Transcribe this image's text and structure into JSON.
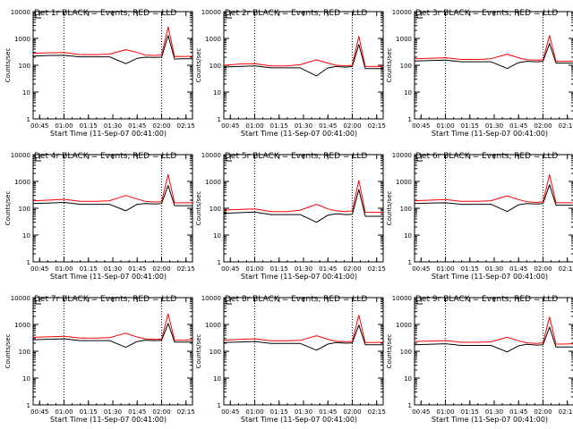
{
  "colors": {
    "events": "#000000",
    "lld": "#ff0000",
    "axis": "#000000"
  },
  "chart_data": [
    {
      "type": "line",
      "title": "Det 1r BLACK = Events, RED = LLD",
      "xlabel": "Start Time (11-Sep-07 00:41:00)",
      "ylabel": "Counts/sec",
      "x_ticks": [
        "00:45",
        "01:00",
        "01:15",
        "01:30",
        "01:45",
        "02:00",
        "02:15"
      ],
      "y_ticks": [
        "1",
        "10",
        "100",
        "1000",
        "10000"
      ],
      "y_scale": "log",
      "ylim": [
        1,
        10000
      ],
      "xlim": [
        "00:41",
        "02:19"
      ],
      "grid": false,
      "vertical_markers": [
        "01:00",
        "02:00"
      ],
      "x": [
        "00:41",
        "00:50",
        "01:00",
        "01:10",
        "01:20",
        "01:28",
        "01:38",
        "01:45",
        "01:50",
        "01:56",
        "02:00",
        "02:04",
        "02:08",
        "02:12",
        "02:19"
      ],
      "series": [
        {
          "name": "Events",
          "color": "#000000",
          "values": [
            220,
            230,
            235,
            205,
            205,
            205,
            115,
            180,
            200,
            195,
            200,
            1300,
            170,
            175,
            175
          ]
        },
        {
          "name": "LLD",
          "color": "#ff0000",
          "values": [
            280,
            290,
            300,
            250,
            250,
            260,
            380,
            300,
            240,
            230,
            240,
            2700,
            210,
            210,
            215
          ]
        }
      ]
    },
    {
      "type": "line",
      "title": "Det 2r BLACK = Events, RED = LLD",
      "xlabel": "Start Time (11-Sep-07 00:41:00)",
      "ylabel": "Counts/sec",
      "x_ticks": [
        "00:45",
        "01:00",
        "01:15",
        "01:30",
        "01:45",
        "02:00",
        "02:15"
      ],
      "y_ticks": [
        "1",
        "10",
        "100",
        "1000",
        "10000"
      ],
      "y_scale": "log",
      "ylim": [
        1,
        10000
      ],
      "xlim": [
        "00:41",
        "02:19"
      ],
      "grid": false,
      "vertical_markers": [
        "01:00",
        "02:00"
      ],
      "x": [
        "00:41",
        "00:50",
        "01:00",
        "01:10",
        "01:20",
        "01:28",
        "01:38",
        "01:45",
        "01:50",
        "01:56",
        "02:00",
        "02:04",
        "02:08",
        "02:12",
        "02:19"
      ],
      "series": [
        {
          "name": "Events",
          "color": "#000000",
          "values": [
            85,
            90,
            95,
            80,
            80,
            80,
            40,
            80,
            90,
            85,
            90,
            600,
            75,
            75,
            75
          ]
        },
        {
          "name": "LLD",
          "color": "#ff0000",
          "values": [
            100,
            110,
            115,
            95,
            95,
            105,
            160,
            120,
            100,
            95,
            100,
            1200,
            90,
            90,
            90
          ]
        }
      ]
    },
    {
      "type": "line",
      "title": "Det 3r BLACK = Events, RED = LLD",
      "xlabel": "Start Time (11-Sep-07 00:41:00)",
      "ylabel": "Counts/sec",
      "x_ticks": [
        "00:45",
        "01:00",
        "01:15",
        "01:30",
        "01:45",
        "02:00",
        "02:15"
      ],
      "y_ticks": [
        "1",
        "10",
        "100",
        "1000",
        "10000"
      ],
      "y_scale": "log",
      "ylim": [
        1,
        10000
      ],
      "xlim": [
        "00:41",
        "02:19"
      ],
      "grid": false,
      "vertical_markers": [
        "01:00",
        "02:00"
      ],
      "x": [
        "00:41",
        "00:50",
        "01:00",
        "01:10",
        "01:20",
        "01:28",
        "01:38",
        "01:45",
        "01:50",
        "01:56",
        "02:00",
        "02:04",
        "02:08",
        "02:12",
        "02:19"
      ],
      "series": [
        {
          "name": "Events",
          "color": "#000000",
          "values": [
            145,
            150,
            155,
            135,
            135,
            135,
            75,
            125,
            140,
            135,
            140,
            650,
            120,
            120,
            120
          ]
        },
        {
          "name": "LLD",
          "color": "#ff0000",
          "values": [
            175,
            180,
            190,
            165,
            165,
            175,
            260,
            190,
            160,
            155,
            160,
            1300,
            140,
            140,
            145
          ]
        }
      ]
    },
    {
      "type": "line",
      "title": "Det 4r BLACK = Events, RED = LLD",
      "xlabel": "Start Time (11-Sep-07 00:41:00)",
      "ylabel": "Counts/sec",
      "x_ticks": [
        "00:45",
        "01:00",
        "01:15",
        "01:30",
        "01:45",
        "02:00",
        "02:15"
      ],
      "y_ticks": [
        "1",
        "10",
        "100",
        "1000",
        "10000"
      ],
      "y_scale": "log",
      "ylim": [
        1,
        10000
      ],
      "xlim": [
        "00:41",
        "02:19"
      ],
      "grid": false,
      "vertical_markers": [
        "01:00",
        "02:00"
      ],
      "x": [
        "00:41",
        "00:50",
        "01:00",
        "01:10",
        "01:20",
        "01:28",
        "01:38",
        "01:45",
        "01:50",
        "01:56",
        "02:00",
        "02:04",
        "02:08",
        "02:12",
        "02:19"
      ],
      "series": [
        {
          "name": "Events",
          "color": "#000000",
          "values": [
            150,
            155,
            165,
            140,
            140,
            140,
            80,
            140,
            150,
            145,
            150,
            700,
            125,
            125,
            125
          ]
        },
        {
          "name": "LLD",
          "color": "#ff0000",
          "values": [
            190,
            200,
            215,
            180,
            180,
            190,
            300,
            220,
            180,
            170,
            175,
            1800,
            160,
            160,
            160
          ]
        }
      ]
    },
    {
      "type": "line",
      "title": "Det 5r BLACK = Events, RED = LLD",
      "xlabel": "Start Time (11-Sep-07 00:41:00)",
      "ylabel": "Counts/sec",
      "x_ticks": [
        "00:45",
        "01:00",
        "01:15",
        "01:30",
        "01:45",
        "02:00",
        "02:15"
      ],
      "y_ticks": [
        "1",
        "10",
        "100",
        "1000",
        "10000"
      ],
      "y_scale": "log",
      "ylim": [
        1,
        10000
      ],
      "xlim": [
        "00:41",
        "02:19"
      ],
      "grid": false,
      "vertical_markers": [
        "01:00",
        "02:00"
      ],
      "x": [
        "00:41",
        "00:50",
        "01:00",
        "01:10",
        "01:20",
        "01:28",
        "01:38",
        "01:45",
        "01:50",
        "01:56",
        "02:00",
        "02:04",
        "02:08",
        "02:12",
        "02:19"
      ],
      "series": [
        {
          "name": "Events",
          "color": "#000000",
          "values": [
            65,
            68,
            72,
            58,
            58,
            58,
            30,
            55,
            62,
            58,
            60,
            500,
            50,
            50,
            50
          ]
        },
        {
          "name": "LLD",
          "color": "#ff0000",
          "values": [
            85,
            90,
            95,
            75,
            75,
            85,
            140,
            95,
            80,
            75,
            80,
            1100,
            70,
            70,
            70
          ]
        }
      ]
    },
    {
      "type": "line",
      "title": "Det 6r BLACK = Events, RED = LLD",
      "xlabel": "Start Time (11-Sep-07 00:41:00)",
      "ylabel": "Counts/sec",
      "x_ticks": [
        "00:45",
        "01:00",
        "01:15",
        "01:30",
        "01:45",
        "02:00",
        "02:15"
      ],
      "y_ticks": [
        "1",
        "10",
        "100",
        "1000",
        "10000"
      ],
      "y_scale": "log",
      "ylim": [
        1,
        10000
      ],
      "xlim": [
        "00:41",
        "02:19"
      ],
      "grid": false,
      "vertical_markers": [
        "01:00",
        "02:00"
      ],
      "x": [
        "00:41",
        "00:50",
        "01:00",
        "01:10",
        "01:20",
        "01:28",
        "01:38",
        "01:45",
        "01:50",
        "01:56",
        "02:00",
        "02:04",
        "02:08",
        "02:12",
        "02:19"
      ],
      "series": [
        {
          "name": "Events",
          "color": "#000000",
          "values": [
            150,
            155,
            160,
            140,
            140,
            140,
            75,
            135,
            150,
            145,
            150,
            750,
            130,
            130,
            130
          ]
        },
        {
          "name": "LLD",
          "color": "#ff0000",
          "values": [
            190,
            200,
            210,
            180,
            180,
            190,
            290,
            210,
            175,
            165,
            175,
            1800,
            160,
            160,
            160
          ]
        }
      ]
    },
    {
      "type": "line",
      "title": "Det 7r BLACK = Events, RED = LLD",
      "xlabel": "Start Time (11-Sep-07 00:41:00)",
      "ylabel": "Counts/sec",
      "x_ticks": [
        "00:45",
        "01:00",
        "01:15",
        "01:30",
        "01:45",
        "02:00",
        "02:15"
      ],
      "y_ticks": [
        "1",
        "10",
        "100",
        "1000",
        "10000"
      ],
      "y_scale": "log",
      "ylim": [
        1,
        10000
      ],
      "xlim": [
        "00:41",
        "02:19"
      ],
      "grid": false,
      "vertical_markers": [
        "01:00",
        "02:00"
      ],
      "x": [
        "00:41",
        "00:50",
        "01:00",
        "01:10",
        "01:20",
        "01:28",
        "01:38",
        "01:45",
        "01:50",
        "01:56",
        "02:00",
        "02:04",
        "02:08",
        "02:12",
        "02:19"
      ],
      "series": [
        {
          "name": "Events",
          "color": "#000000",
          "values": [
            270,
            280,
            290,
            250,
            250,
            250,
            140,
            230,
            260,
            250,
            255,
            1100,
            220,
            220,
            220
          ]
        },
        {
          "name": "LLD",
          "color": "#ff0000",
          "values": [
            330,
            345,
            360,
            310,
            310,
            320,
            470,
            340,
            290,
            275,
            285,
            2500,
            260,
            260,
            265
          ]
        }
      ]
    },
    {
      "type": "line",
      "title": "Det 8r BLACK = Events, RED = LLD",
      "xlabel": "Start Time (11-Sep-07 00:41:00)",
      "ylabel": "Counts/sec",
      "x_ticks": [
        "00:45",
        "01:00",
        "01:15",
        "01:30",
        "01:45",
        "02:00",
        "02:15"
      ],
      "y_ticks": [
        "1",
        "10",
        "100",
        "1000",
        "10000"
      ],
      "y_scale": "log",
      "ylim": [
        1,
        10000
      ],
      "xlim": [
        "00:41",
        "02:19"
      ],
      "grid": false,
      "vertical_markers": [
        "01:00",
        "02:00"
      ],
      "x": [
        "00:41",
        "00:50",
        "01:00",
        "01:10",
        "01:20",
        "01:28",
        "01:38",
        "01:45",
        "01:50",
        "01:56",
        "02:00",
        "02:04",
        "02:08",
        "02:12",
        "02:19"
      ],
      "series": [
        {
          "name": "Events",
          "color": "#000000",
          "values": [
            210,
            220,
            230,
            195,
            195,
            195,
            110,
            185,
            210,
            200,
            205,
            950,
            175,
            175,
            175
          ]
        },
        {
          "name": "LLD",
          "color": "#ff0000",
          "values": [
            260,
            275,
            290,
            245,
            245,
            255,
            380,
            280,
            235,
            225,
            235,
            2200,
            210,
            210,
            215
          ]
        }
      ]
    },
    {
      "type": "line",
      "title": "Det 9r BLACK = Events, RED = LLD",
      "xlabel": "Start Time (11-Sep-07 00:41:00)",
      "ylabel": "Counts/sec",
      "x_ticks": [
        "00:45",
        "01:00",
        "01:15",
        "01:30",
        "01:45",
        "02:00",
        "02:15"
      ],
      "y_ticks": [
        "1",
        "10",
        "100",
        "1000",
        "10000"
      ],
      "y_scale": "log",
      "ylim": [
        1,
        10000
      ],
      "xlim": [
        "00:41",
        "02:19"
      ],
      "grid": false,
      "vertical_markers": [
        "01:00",
        "02:00"
      ],
      "x": [
        "00:41",
        "00:50",
        "01:00",
        "01:10",
        "01:20",
        "01:28",
        "01:38",
        "01:45",
        "01:50",
        "01:56",
        "02:00",
        "02:04",
        "02:08",
        "02:12",
        "02:19"
      ],
      "series": [
        {
          "name": "Events",
          "color": "#000000",
          "values": [
            175,
            180,
            190,
            165,
            165,
            165,
            95,
            160,
            180,
            170,
            175,
            800,
            145,
            145,
            145
          ]
        },
        {
          "name": "LLD",
          "color": "#ff0000",
          "values": [
            230,
            240,
            250,
            215,
            215,
            225,
            330,
            245,
            205,
            195,
            205,
            1900,
            185,
            185,
            190
          ]
        }
      ]
    }
  ]
}
